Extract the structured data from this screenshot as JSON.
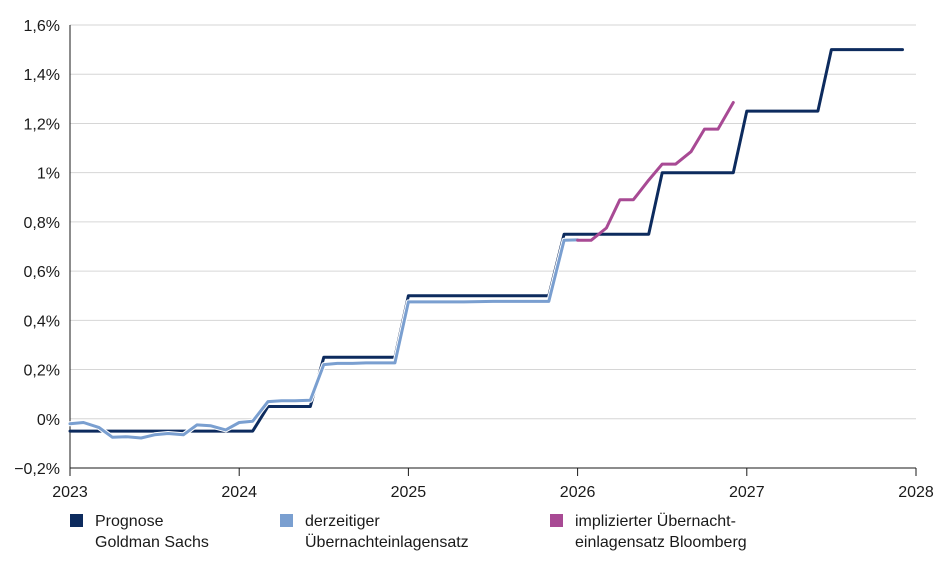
{
  "chart_data": {
    "type": "line",
    "title": "",
    "xlabel": "",
    "ylabel": "",
    "xlim": [
      2023,
      2028
    ],
    "ylim": [
      -0.2,
      1.6
    ],
    "x_ticks": [
      2023,
      2024,
      2025,
      2026,
      2027,
      2028
    ],
    "x_tick_labels": [
      "2023",
      "2024",
      "2025",
      "2026",
      "2027",
      "2028"
    ],
    "y_ticks": [
      -0.2,
      0,
      0.2,
      0.4,
      0.6,
      0.8,
      1.0,
      1.2,
      1.4,
      1.6
    ],
    "y_tick_labels": [
      "−0,2%",
      "0%",
      "0,2%",
      "0,4%",
      "0,6%",
      "0,8%",
      "1%",
      "1,2%",
      "1,4%",
      "1,6%"
    ],
    "grid": "horizontal",
    "legend_position": "bottom",
    "series": [
      {
        "name": "Prognose\nGoldman Sachs",
        "color": "#0d2b5e",
        "x": [
          2023.0,
          2024.08,
          2024.17,
          2024.42,
          2024.5,
          2024.92,
          2025.0,
          2025.83,
          2025.92,
          2026.42,
          2026.5,
          2026.92,
          2027.0,
          2027.42,
          2027.5,
          2027.92
        ],
        "y": [
          -0.05,
          -0.05,
          0.05,
          0.05,
          0.25,
          0.25,
          0.5,
          0.5,
          0.75,
          0.75,
          1.0,
          1.0,
          1.25,
          1.25,
          1.5,
          1.5
        ]
      },
      {
        "name": "derzeitiger\nÜbernachteinlagensatz",
        "color": "#7a9fd0",
        "x": [
          2023.0,
          2023.08,
          2023.17,
          2023.25,
          2023.33,
          2023.42,
          2023.5,
          2023.58,
          2023.67,
          2023.75,
          2023.83,
          2023.92,
          2024.0,
          2024.08,
          2024.17,
          2024.25,
          2024.33,
          2024.42,
          2024.5,
          2024.58,
          2024.67,
          2024.75,
          2024.83,
          2024.92,
          2025.0,
          2025.17,
          2025.33,
          2025.5,
          2025.67,
          2025.83,
          2025.92,
          2026.0
        ],
        "y": [
          -0.02,
          -0.015,
          -0.035,
          -0.075,
          -0.073,
          -0.078,
          -0.065,
          -0.06,
          -0.065,
          -0.025,
          -0.028,
          -0.045,
          -0.015,
          -0.01,
          0.07,
          0.073,
          0.073,
          0.075,
          0.22,
          0.225,
          0.225,
          0.227,
          0.227,
          0.227,
          0.475,
          0.475,
          0.475,
          0.477,
          0.477,
          0.477,
          0.725,
          0.727
        ]
      },
      {
        "name": "implizierter Übernacht-\neinlagensatz Bloomberg",
        "color": "#a84a94",
        "x": [
          2026.0,
          2026.08,
          2026.17,
          2026.25,
          2026.33,
          2026.42,
          2026.5,
          2026.58,
          2026.67,
          2026.75,
          2026.83,
          2026.92
        ],
        "y": [
          0.725,
          0.725,
          0.775,
          0.89,
          0.89,
          0.97,
          1.035,
          1.035,
          1.085,
          1.177,
          1.177,
          1.285
        ]
      }
    ]
  }
}
